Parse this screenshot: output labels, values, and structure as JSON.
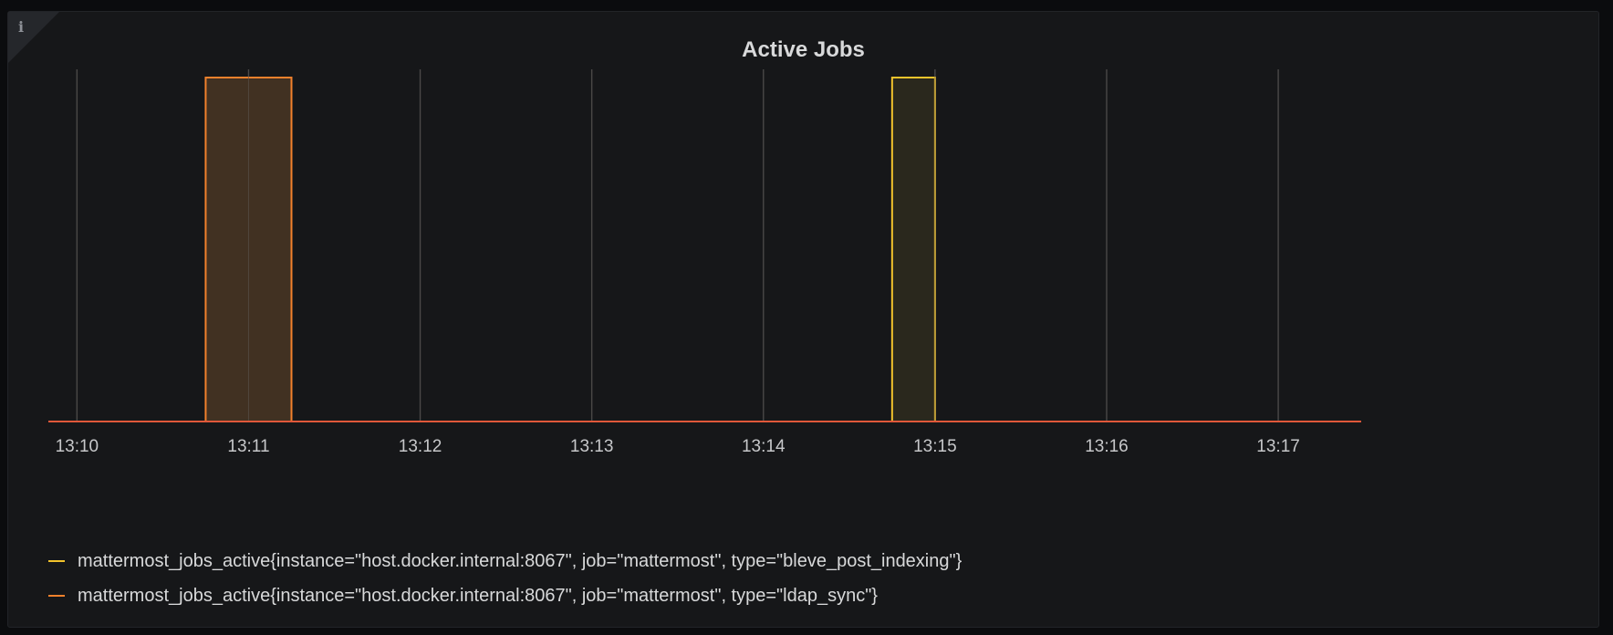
{
  "panel": {
    "title": "Active Jobs",
    "info_icon": "info-icon"
  },
  "chart_data": {
    "type": "line",
    "title": "Active Jobs",
    "xlabel": "",
    "ylabel": "",
    "x_ticks": [
      "13:10",
      "13:11",
      "13:12",
      "13:13",
      "13:14",
      "13:15",
      "13:16",
      "13:17"
    ],
    "xlim": [
      "13:09:50",
      "13:17:29"
    ],
    "ylim": [
      0,
      1
    ],
    "grid": "vertical",
    "legend_placement": "bottom-left",
    "series": [
      {
        "name": "mattermost_jobs_active{instance=\"host.docker.internal:8067\", job=\"mattermost\", type=\"bleve_post_indexing\"}",
        "color": "#F2C32C",
        "fill": "#2a281d",
        "points": [
          [
            "13:09:50",
            0
          ],
          [
            "13:14:45",
            0
          ],
          [
            "13:14:45",
            1
          ],
          [
            "13:15:00",
            1
          ],
          [
            "13:15:00",
            0
          ],
          [
            "13:17:29",
            0
          ]
        ]
      },
      {
        "name": "mattermost_jobs_active{instance=\"host.docker.internal:8067\", job=\"mattermost\", type=\"ldap_sync\"}",
        "color": "#F2812C",
        "fill": "#413122",
        "points": [
          [
            "13:09:50",
            0
          ],
          [
            "13:10:45",
            0
          ],
          [
            "13:10:45",
            1
          ],
          [
            "13:11:15",
            1
          ],
          [
            "13:11:15",
            0
          ],
          [
            "13:17:29",
            0
          ]
        ]
      }
    ]
  }
}
